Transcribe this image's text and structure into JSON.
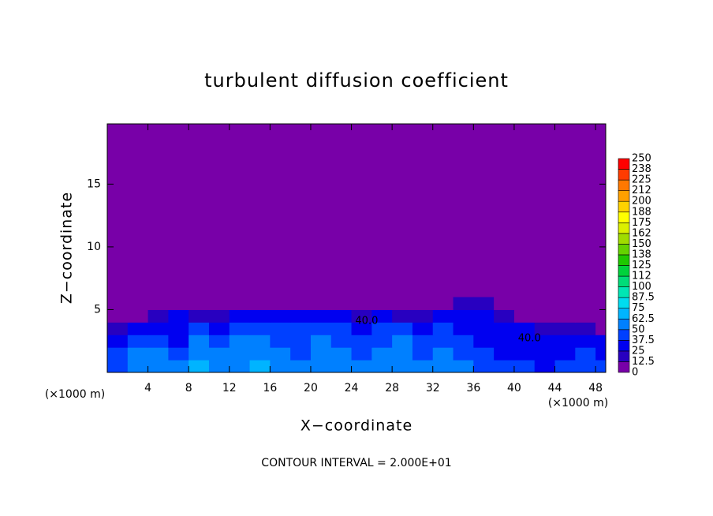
{
  "chart_data": {
    "type": "contour",
    "title": "turbulent diffusion coefficient",
    "x_label": "X−coordinate",
    "y_label": "Z−coordinate",
    "x_unit": "(×1000 m)",
    "footer": "CONTOUR INTERVAL = 2.000E+01",
    "xlim": [
      0,
      49
    ],
    "ylim": [
      0,
      19.8
    ],
    "xticks": [
      4,
      8,
      12,
      16,
      20,
      24,
      28,
      32,
      36,
      40,
      44,
      48
    ],
    "yticks": [
      5,
      10,
      15
    ],
    "levels": [
      0,
      12.5,
      25,
      37.5,
      50,
      62.5,
      75,
      87.5,
      100,
      112,
      125,
      138,
      150,
      162,
      175,
      188,
      200,
      212,
      225,
      238,
      250
    ],
    "colors": [
      "#7800a8",
      "#2800c0",
      "#0000f0",
      "#0040ff",
      "#0080ff",
      "#00b4ff",
      "#00dcf0",
      "#00e6b4",
      "#00dc78",
      "#00d23c",
      "#1ec800",
      "#64d200",
      "#a0dc00",
      "#dcf000",
      "#ffff00",
      "#ffd200",
      "#ffa000",
      "#ff7800",
      "#ff3c00",
      "#ff0000"
    ],
    "top_color": "#ff8080",
    "field": {
      "x": [
        1,
        3,
        5,
        7,
        9,
        11,
        13,
        15,
        17,
        19,
        21,
        23,
        25,
        27,
        29,
        31,
        33,
        35,
        37,
        39,
        41,
        43,
        45,
        47,
        49
      ],
      "z": [
        0.5,
        1.5,
        2.5,
        3.5,
        4.5,
        5.5
      ],
      "values": [
        [
          45,
          55,
          60,
          50,
          65,
          55,
          60,
          65,
          55,
          50,
          60,
          55,
          50,
          55,
          60,
          50,
          55,
          50,
          45,
          40,
          40,
          35,
          40,
          45,
          40
        ],
        [
          40,
          50,
          55,
          45,
          60,
          50,
          55,
          60,
          50,
          45,
          55,
          50,
          45,
          50,
          55,
          45,
          50,
          45,
          40,
          35,
          35,
          30,
          35,
          40,
          35
        ],
        [
          30,
          40,
          45,
          35,
          50,
          40,
          50,
          55,
          45,
          45,
          50,
          45,
          40,
          45,
          50,
          40,
          45,
          40,
          35,
          30,
          30,
          25,
          30,
          30,
          25
        ],
        [
          20,
          30,
          35,
          30,
          40,
          30,
          45,
          45,
          40,
          40,
          45,
          40,
          35,
          40,
          45,
          35,
          40,
          35,
          30,
          25,
          25,
          15,
          20,
          15,
          10
        ],
        [
          5,
          10,
          20,
          25,
          20,
          15,
          35,
          35,
          30,
          30,
          35,
          30,
          20,
          30,
          20,
          20,
          35,
          30,
          25,
          15,
          10,
          5,
          10,
          5,
          0
        ],
        [
          0,
          0,
          0,
          0,
          0,
          0,
          0,
          0,
          0,
          0,
          0,
          0,
          0,
          0,
          0,
          0,
          0,
          15,
          20,
          10,
          5,
          0,
          0,
          0,
          0
        ]
      ]
    },
    "contour_labels": [
      {
        "text": "40.0",
        "x": 25.5,
        "z": 4.1
      },
      {
        "text": "40.0",
        "x": 41.5,
        "z": 2.7
      }
    ]
  }
}
